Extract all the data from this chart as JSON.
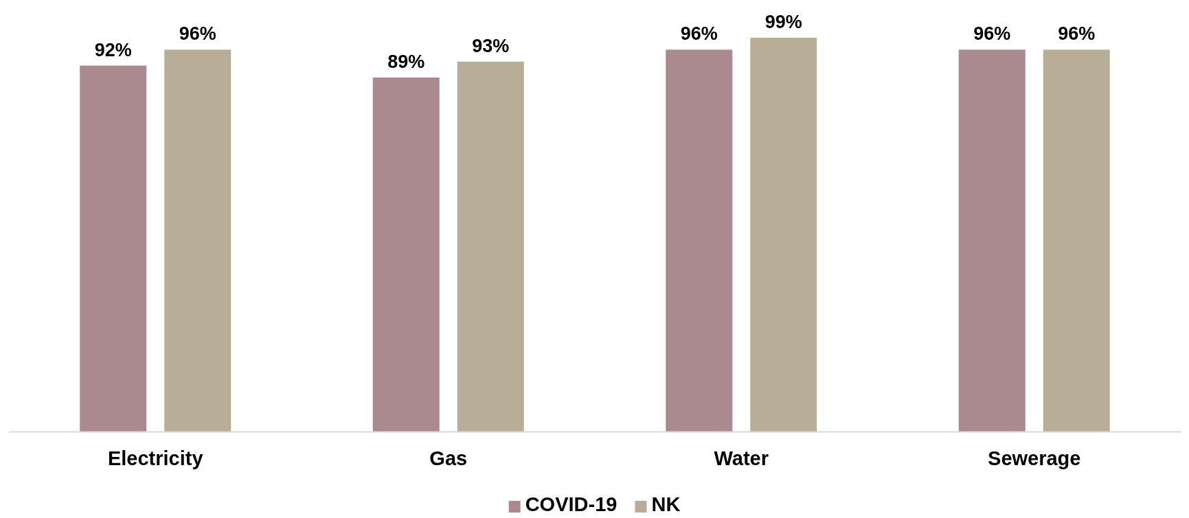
{
  "chart_data": {
    "type": "bar",
    "categories": [
      "Electricity",
      "Gas",
      "Water",
      "Sewerage"
    ],
    "series": [
      {
        "name": "COVID-19",
        "color": "#ab8a8f",
        "values": [
          92,
          89,
          96,
          96
        ],
        "value_labels": [
          "92%",
          "89%",
          "96%",
          "96%"
        ]
      },
      {
        "name": "NK",
        "color": "#b8ae98",
        "values": [
          96,
          93,
          99,
          96
        ],
        "value_labels": [
          "96%",
          "93%",
          "99%",
          "96%"
        ]
      }
    ],
    "legend": "bottom"
  }
}
